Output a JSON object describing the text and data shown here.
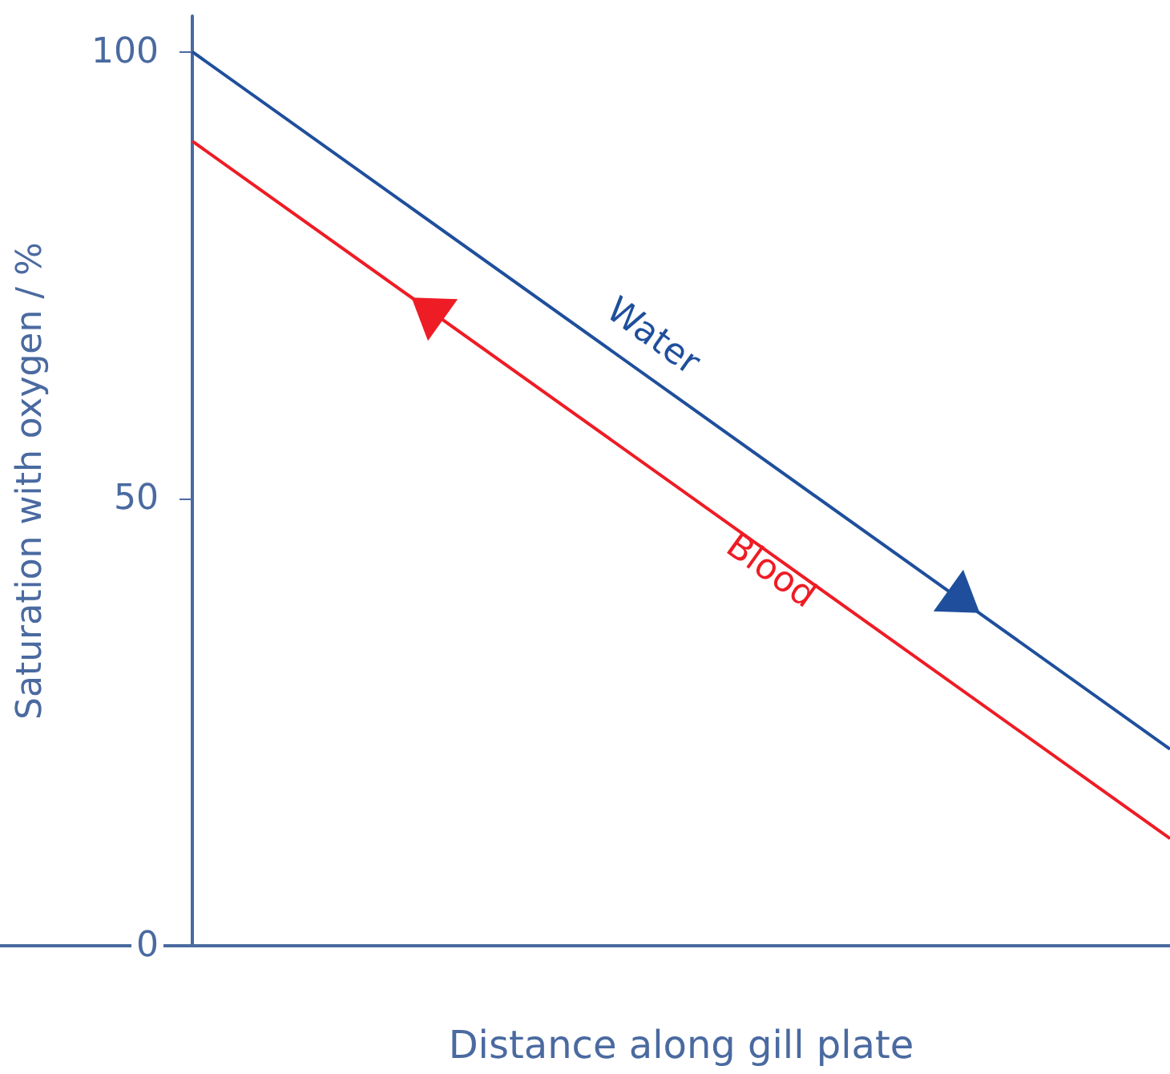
{
  "chart_data": {
    "type": "line",
    "xlabel": "Distance along gill plate",
    "ylabel": "Saturation with oxygen / %",
    "categories": [
      null,
      null
    ],
    "series": [
      {
        "name": "Water",
        "color": "#1f4f9c",
        "values": [
          100,
          22
        ]
      },
      {
        "name": "Blood",
        "color": "#ee1c25",
        "values": [
          90,
          12
        ]
      }
    ],
    "ylim": [
      0,
      104
    ],
    "yticks": [
      0,
      50,
      100
    ],
    "grid": false,
    "marker": "none",
    "line_style": "solid"
  }
}
